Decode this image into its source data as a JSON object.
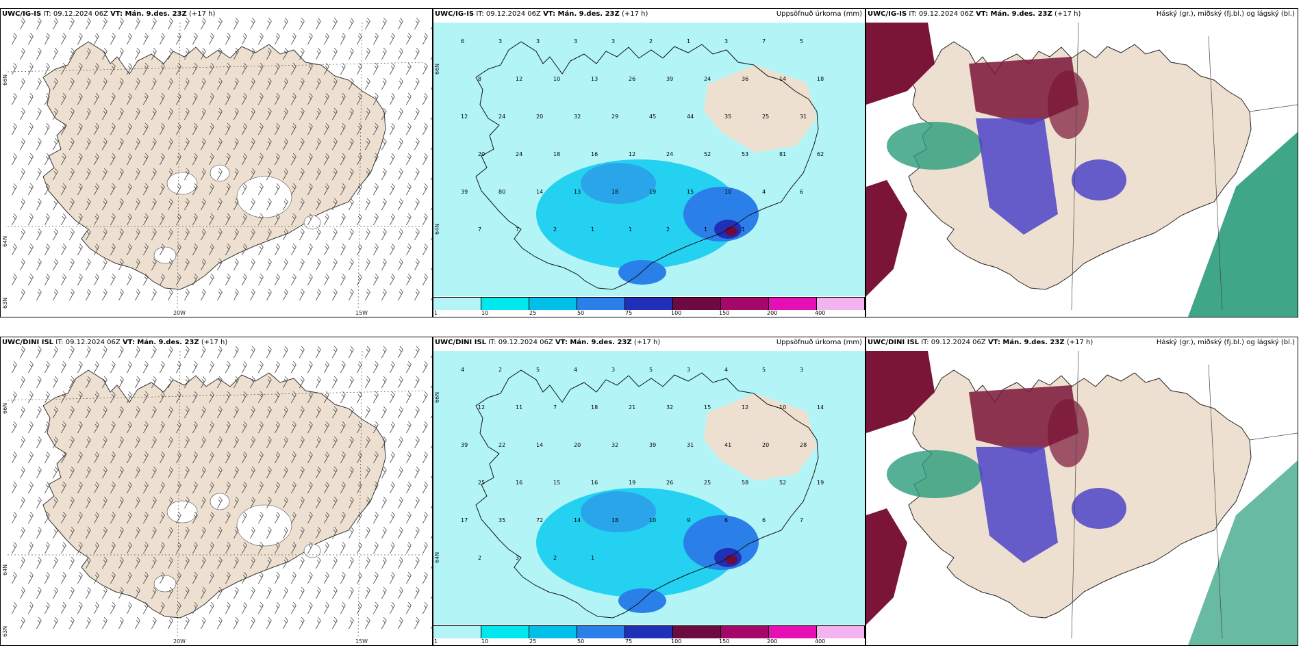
{
  "rows": [
    {
      "wind_panel": {
        "model": "UWC/IG-IS",
        "it": "IT: 09.12.2024 06Z",
        "vt": "VT: Mán. 9.des. 23Z",
        "lead": "(+17 h)",
        "lat_labels": [
          "66N",
          "64N",
          "63N"
        ],
        "lon_labels": [
          "20W",
          "15W"
        ]
      },
      "precip_panel": {
        "model": "UWC/IG-IS",
        "it": "IT: 09.12.2024 06Z",
        "vt": "VT: Mán. 9.des. 23Z",
        "lead": "(+17 h)",
        "title_right": "Uppsöfnuð úrkoma (mm)",
        "lat_labels": [
          "66N",
          "64N"
        ]
      },
      "cloud_panel": {
        "model": "UWC/IG-IS",
        "it": "IT: 09.12.2024 06Z",
        "vt": "VT: Mán. 9.des. 23Z",
        "lead": "(+17 h)",
        "title_right": "Háský (gr.), miðský (fj.bl.) og lágský (bl.)"
      }
    },
    {
      "wind_panel": {
        "model": "UWC/DINI ISL",
        "it": "IT: 09.12.2024 06Z",
        "vt": "VT: Mán. 9.des. 23Z",
        "lead": "(+17 h)",
        "lat_labels": [
          "66N",
          "64N",
          "63N"
        ],
        "lon_labels": [
          "20W",
          "15W"
        ]
      },
      "precip_panel": {
        "model": "UWC/DINI ISL",
        "it": "IT: 09.12.2024 06Z",
        "vt": "VT: Mán. 9.des. 23Z",
        "lead": "(+17 h)",
        "title_right": "Uppsöfnuð úrkoma (mm)",
        "lat_labels": [
          "66N",
          "64N"
        ]
      },
      "cloud_panel": {
        "model": "UWC/DINI ISL",
        "it": "IT: 09.12.2024 06Z",
        "vt": "VT: Mán. 9.des. 23Z",
        "lead": "(+17 h)",
        "title_right": "Háský (gr.), miðský (fj.bl.) og lágský (bl.)"
      }
    }
  ],
  "colorbar": {
    "ticks": [
      "1",
      "10",
      "25",
      "50",
      "75",
      "100",
      "150",
      "200",
      "400"
    ],
    "colors": [
      "#b3f5f7",
      "#00e8ee",
      "#00bfe8",
      "#2a7fe8",
      "#1f2fb8",
      "#6d0a3f",
      "#a4086b",
      "#e60fb5",
      "#f2b3f0"
    ]
  },
  "colors": {
    "land": "#eee0d0",
    "precip_light": "#b3f5f7",
    "precip_mid": "#00c8ee",
    "precip_heavy": "#1f2fb8",
    "high_cloud": "#7a1538",
    "mid_cloud": "#4c44c8",
    "low_cloud": "#2a9c7a"
  },
  "precip_values_top": [
    "6",
    "3",
    "3",
    "3",
    "3",
    "2",
    "1",
    "3",
    "7",
    "5",
    "8",
    "12",
    "10",
    "13",
    "26",
    "39",
    "24",
    "36",
    "14",
    "18",
    "12",
    "24",
    "20",
    "32",
    "29",
    "45",
    "44",
    "35",
    "25",
    "31",
    "20",
    "24",
    "18",
    "16",
    "12",
    "24",
    "52",
    "53",
    "81",
    "62",
    "39",
    "80",
    "14",
    "13",
    "18",
    "19",
    "15",
    "10",
    "4",
    "6",
    "7",
    "7",
    "2",
    "1",
    "1",
    "2",
    "1",
    "1"
  ],
  "precip_values_bottom": [
    "4",
    "2",
    "5",
    "4",
    "3",
    "5",
    "3",
    "4",
    "5",
    "3",
    "12",
    "11",
    "7",
    "18",
    "21",
    "32",
    "15",
    "12",
    "10",
    "14",
    "39",
    "22",
    "14",
    "20",
    "32",
    "39",
    "31",
    "41",
    "20",
    "28",
    "25",
    "16",
    "15",
    "16",
    "19",
    "26",
    "25",
    "58",
    "52",
    "19",
    "17",
    "35",
    "72",
    "14",
    "18",
    "10",
    "9",
    "6",
    "6",
    "7",
    "2",
    "3",
    "2",
    "1"
  ]
}
